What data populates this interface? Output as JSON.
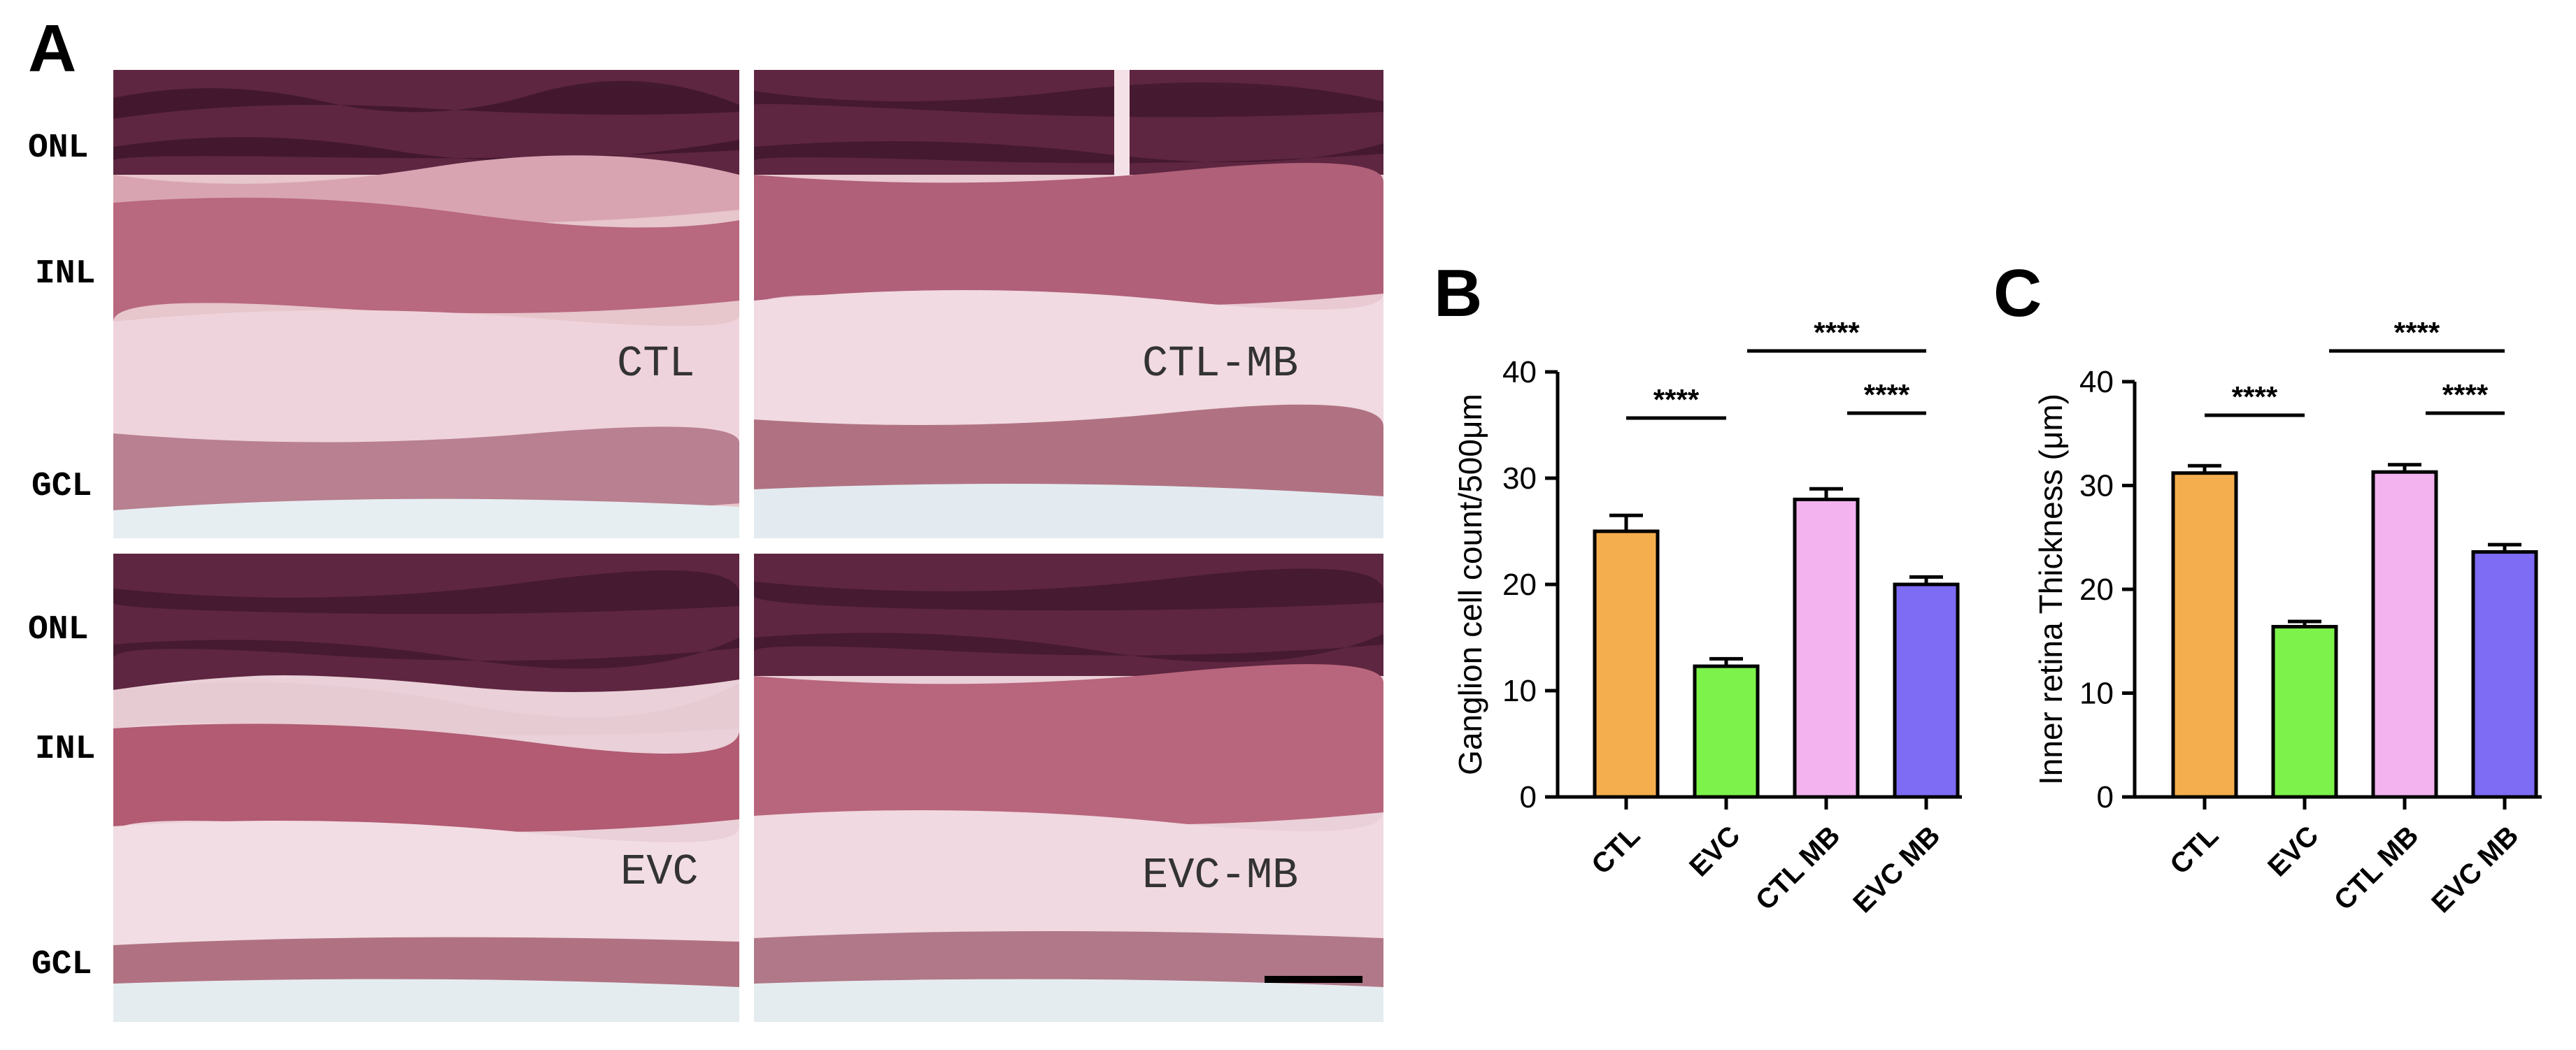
{
  "panel_letters": {
    "a": "A",
    "b": "B",
    "c": "C"
  },
  "layer_labels": {
    "top": {
      "onl": "ONL",
      "inl": "INL",
      "gcl": "GCL"
    },
    "bottom": {
      "onl": "ONL",
      "inl": "INL",
      "gcl": "GCL"
    }
  },
  "micrographs": [
    {
      "label": "CTL"
    },
    {
      "label": "CTL-MB"
    },
    {
      "label": "EVC"
    },
    {
      "label": "EVC-MB"
    }
  ],
  "colors": {
    "ctl": "#F5AE4E",
    "evc": "#7CF24A",
    "ctl_mb": "#F2B3EE",
    "evc_mb": "#7E6CF5",
    "tissue_pink": "#EFD3DC",
    "nuclei": "#6E2F4E"
  },
  "chart_data": [
    {
      "type": "bar",
      "categories": [
        "CTL",
        "EVC",
        "CTL MB",
        "EVC MB"
      ],
      "values": [
        25,
        12.3,
        28,
        20
      ],
      "errors": [
        1.5,
        0.7,
        1.0,
        0.7
      ],
      "ylabel": "Ganglion cell count/500μm",
      "ylim": [
        0,
        40
      ],
      "yticks": [
        "0",
        "10",
        "20",
        "30",
        "40"
      ],
      "significance": [
        {
          "from": "CTL",
          "to": "EVC",
          "label": "****"
        },
        {
          "from": "EVC",
          "to": "EVC MB",
          "label": "****"
        },
        {
          "from": "CTL MB",
          "to": "EVC MB",
          "label": "****"
        }
      ]
    },
    {
      "type": "bar",
      "categories": [
        "CTL",
        "EVC",
        "CTL MB",
        "EVC MB"
      ],
      "values": [
        31.2,
        16.4,
        31.3,
        23.6
      ],
      "errors": [
        0.7,
        0.5,
        0.7,
        0.7
      ],
      "ylabel": "Inner retina Thickness (μm)",
      "ylim": [
        0,
        40
      ],
      "yticks": [
        "0",
        "10",
        "20",
        "30",
        "40"
      ],
      "significance": [
        {
          "from": "CTL",
          "to": "EVC",
          "label": "****"
        },
        {
          "from": "EVC",
          "to": "EVC MB",
          "label": "****"
        },
        {
          "from": "CTL MB",
          "to": "EVC MB",
          "label": "****"
        }
      ]
    }
  ]
}
